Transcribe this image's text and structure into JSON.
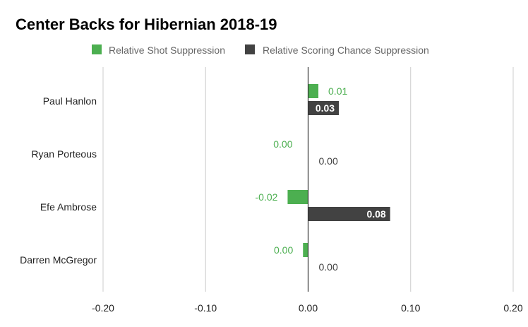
{
  "chart_data": {
    "type": "bar",
    "orientation": "horizontal",
    "title": "Center Backs for Hibernian 2018-19",
    "categories": [
      "Paul Hanlon",
      "Ryan Porteous",
      "Efe Ambrose",
      "Darren McGregor"
    ],
    "series": [
      {
        "name": "Relative Shot Suppression",
        "color": "#4caf50",
        "values": [
          0.01,
          0.0,
          -0.02,
          -0.005
        ],
        "labels": [
          "0.01",
          "0.00",
          "-0.02",
          "0.00"
        ]
      },
      {
        "name": "Relative Scoring Chance Suppression",
        "color": "#424242",
        "values": [
          0.03,
          0.0,
          0.08,
          0.0
        ],
        "labels": [
          "0.03",
          "0.00",
          "0.08",
          "0.00"
        ]
      }
    ],
    "xlim": [
      -0.2,
      0.2
    ],
    "xticks": [
      -0.2,
      -0.1,
      0.0,
      0.1,
      0.2
    ],
    "xtick_labels": [
      "-0.20",
      "-0.10",
      "0.00",
      "0.10",
      "0.20"
    ],
    "grid": true,
    "legend_position": "top"
  }
}
